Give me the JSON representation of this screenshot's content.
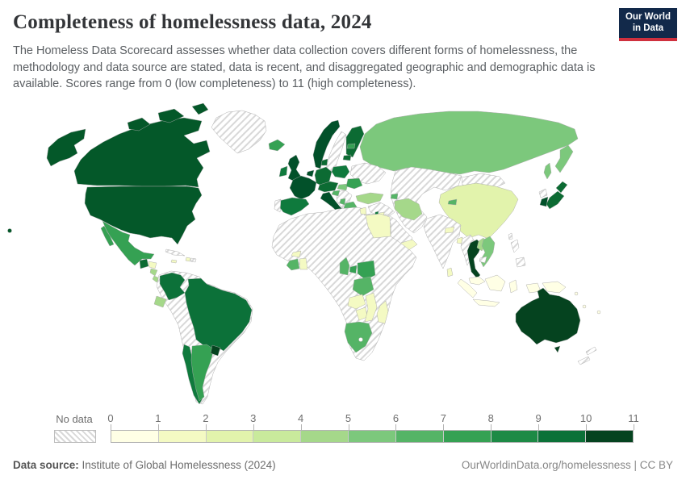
{
  "header": {
    "title": "Completeness of homelessness data, 2024",
    "subtitle": "The Homeless Data Scorecard assesses whether data collection covers different forms of homelessness, the methodology and data source are stated, data is recent, and disaggregated geographic and demographic data is available. Scores range from 0 (low completeness) to 11 (high completeness).",
    "logo": {
      "line1": "Our World",
      "line2": "in Data",
      "bg": "#12294a",
      "accent": "#cf303e"
    }
  },
  "footer": {
    "source_label": "Data source:",
    "source_value": " Institute of Global Homelessness (2024)",
    "right_text": "OurWorldinData.org/homelessness | CC BY"
  },
  "chart_data": {
    "type": "choropleth",
    "title": "Completeness of homelessness data, 2024",
    "value_label": "Homeless Data Scorecard score",
    "range": [
      0,
      11
    ],
    "legend_ticks": [
      "0",
      "1",
      "2",
      "3",
      "4",
      "5",
      "6",
      "7",
      "8",
      "9",
      "10",
      "11"
    ],
    "palette": [
      "#ffffe5",
      "#f4fac3",
      "#e2f3ac",
      "#c9ea9c",
      "#a5d88a",
      "#7cc87c",
      "#55b466",
      "#35a153",
      "#1d8a45",
      "#0b7138",
      "#05431f"
    ],
    "no_data": {
      "label": "No data",
      "pattern": "diagonal-hatch"
    },
    "countries": [
      {
        "id": "canada",
        "name": "Canada",
        "score": 10,
        "fill": "#045829"
      },
      {
        "id": "usa",
        "name": "United States",
        "score": 10,
        "fill": "#045829"
      },
      {
        "id": "greenland",
        "name": "Greenland",
        "score": null,
        "fill": "no-data"
      },
      {
        "id": "mexico",
        "name": "Mexico",
        "score": 7,
        "fill": "#35a153"
      },
      {
        "id": "guatemala",
        "name": "Guatemala",
        "score": 9,
        "fill": "#0c6b33"
      },
      {
        "id": "honduras",
        "name": "Honduras",
        "score": 1,
        "fill": "#f4fac3"
      },
      {
        "id": "nicaragua",
        "name": "Nicaragua",
        "score": 4,
        "fill": "#a5d88a"
      },
      {
        "id": "costarica",
        "name": "Costa Rica",
        "score": 4,
        "fill": "#a5d88a"
      },
      {
        "id": "panama",
        "name": "Panama",
        "score": 7,
        "fill": "#35a153"
      },
      {
        "id": "cuba",
        "name": "Cuba",
        "score": null,
        "fill": "no-data"
      },
      {
        "id": "jamaica",
        "name": "Jamaica",
        "score": 1,
        "fill": "#f4fac3"
      },
      {
        "id": "haiti",
        "name": "Haiti",
        "score": 1,
        "fill": "#f4fac3"
      },
      {
        "id": "dominican",
        "name": "Dominican Republic",
        "score": null,
        "fill": "no-data"
      },
      {
        "id": "samerica-base",
        "name": "South America (no data: Venezuela, Peru, Bolivia, Paraguay, Guyanas)",
        "score": null,
        "fill": "no-data"
      },
      {
        "id": "colombia",
        "name": "Colombia",
        "score": 8,
        "fill": "#0c7139"
      },
      {
        "id": "ecuador",
        "name": "Ecuador",
        "score": 4,
        "fill": "#a5d88a"
      },
      {
        "id": "brazil",
        "name": "Brazil",
        "score": 8,
        "fill": "#0c7139"
      },
      {
        "id": "chile",
        "name": "Chile",
        "score": 8,
        "fill": "#0f7a3d"
      },
      {
        "id": "argentina",
        "name": "Argentina",
        "score": 7,
        "fill": "#35a153"
      },
      {
        "id": "uruguay",
        "name": "Uruguay",
        "score": 11,
        "fill": "#05431f"
      },
      {
        "id": "iceland",
        "name": "Iceland",
        "score": 7,
        "fill": "#35a153"
      },
      {
        "id": "norway",
        "name": "Norway",
        "score": 10,
        "fill": "#02512a"
      },
      {
        "id": "sweden",
        "name": "Sweden",
        "score": null,
        "fill": "no-data"
      },
      {
        "id": "finland",
        "name": "Finland",
        "score": 9,
        "fill": "#0c6b33"
      },
      {
        "id": "estonia",
        "name": "Estonia",
        "score": 7,
        "fill": "#35a153"
      },
      {
        "id": "lithuania",
        "name": "Lithuania",
        "score": 9,
        "fill": "#0c6b33"
      },
      {
        "id": "uk",
        "name": "United Kingdom",
        "score": 10,
        "fill": "#02512a"
      },
      {
        "id": "ireland",
        "name": "Ireland",
        "score": 9,
        "fill": "#0f7a3d"
      },
      {
        "id": "france",
        "name": "France",
        "score": 10,
        "fill": "#02512a"
      },
      {
        "id": "benelux",
        "name": "Belgium / Netherlands",
        "score": 10,
        "fill": "#02512a"
      },
      {
        "id": "germany",
        "name": "Germany",
        "score": 9,
        "fill": "#0c6b33"
      },
      {
        "id": "denmark",
        "name": "Denmark",
        "score": 10,
        "fill": "#0c6b33"
      },
      {
        "id": "poland",
        "name": "Poland",
        "score": 8,
        "fill": "#0f7a3d"
      },
      {
        "id": "czech-austria",
        "name": "Czechia / Austria",
        "score": 9,
        "fill": "#0c6b33"
      },
      {
        "id": "italy",
        "name": "Italy",
        "score": 10,
        "fill": "#02512a"
      },
      {
        "id": "spain",
        "name": "Spain",
        "score": 8,
        "fill": "#0f7a3d"
      },
      {
        "id": "portugal",
        "name": "Portugal",
        "score": null,
        "fill": "no-data"
      },
      {
        "id": "ukraine-belarus",
        "name": "Ukraine / Belarus",
        "score": null,
        "fill": "no-data"
      },
      {
        "id": "balkans",
        "name": "Balkans (no data)",
        "score": null,
        "fill": "no-data"
      },
      {
        "id": "hungary",
        "name": "Hungary",
        "score": 5,
        "fill": "#7cc87c"
      },
      {
        "id": "romania",
        "name": "Romania",
        "score": 7,
        "fill": "#35a153"
      },
      {
        "id": "croatia",
        "name": "Croatia",
        "score": 6,
        "fill": "#55b466"
      },
      {
        "id": "albania",
        "name": "Albania",
        "score": 6,
        "fill": "#55b466"
      },
      {
        "id": "greece",
        "name": "Greece",
        "score": 6,
        "fill": "#55b466"
      },
      {
        "id": "russia",
        "name": "Russia",
        "score": 5,
        "fill": "#7cc87c"
      },
      {
        "id": "kazakh-centralasia",
        "name": "Central Asia (no data)",
        "score": null,
        "fill": "no-data"
      },
      {
        "id": "mongolia",
        "name": "Mongolia",
        "score": null,
        "fill": "no-data"
      },
      {
        "id": "china",
        "name": "China",
        "score": 2,
        "fill": "#e2f3ac"
      },
      {
        "id": "india",
        "name": "India",
        "score": null,
        "fill": "no-data"
      },
      {
        "id": "nepal",
        "name": "Nepal",
        "score": 1,
        "fill": "#f4fac3"
      },
      {
        "id": "bangladesh",
        "name": "Bangladesh",
        "score": 1,
        "fill": "#f4fac3"
      },
      {
        "id": "srilanka",
        "name": "Sri Lanka",
        "score": 1,
        "fill": "#f4fac3"
      },
      {
        "id": "myanmar",
        "name": "Myanmar",
        "score": null,
        "fill": "no-data"
      },
      {
        "id": "thailand",
        "name": "Thailand",
        "score": 11,
        "fill": "#05431f"
      },
      {
        "id": "laos",
        "name": "Laos",
        "score": 4,
        "fill": "#a5d88a"
      },
      {
        "id": "vietnam",
        "name": "Vietnam",
        "score": 5,
        "fill": "#7cc87c"
      },
      {
        "id": "cambodia",
        "name": "Cambodia",
        "score": null,
        "fill": "no-data"
      },
      {
        "id": "malaysia",
        "name": "Malaysia",
        "score": 0,
        "fill": "#ffffe5"
      },
      {
        "id": "indonesia",
        "name": "Indonesia",
        "score": 0,
        "fill": "#ffffe5"
      },
      {
        "id": "png",
        "name": "Papua New Guinea",
        "score": 0,
        "fill": "#ffffe5"
      },
      {
        "id": "philippines",
        "name": "Philippines",
        "score": null,
        "fill": "no-data"
      },
      {
        "id": "japan",
        "name": "Japan",
        "score": 9,
        "fill": "#0c6b33"
      },
      {
        "id": "nkorea",
        "name": "North Korea",
        "score": null,
        "fill": "no-data"
      },
      {
        "id": "skorea",
        "name": "South Korea",
        "score": 10,
        "fill": "#02512a"
      },
      {
        "id": "taiwan",
        "name": "Taiwan",
        "score": null,
        "fill": "no-data"
      },
      {
        "id": "mideast",
        "name": "Middle East (no data)",
        "score": null,
        "fill": "no-data"
      },
      {
        "id": "turkey",
        "name": "Turkey",
        "score": 4,
        "fill": "#a5d88a"
      },
      {
        "id": "azerbaijan",
        "name": "Azerbaijan",
        "score": 6,
        "fill": "#55b466"
      },
      {
        "id": "kyrgyzstan",
        "name": "Kyrgyzstan",
        "score": 6,
        "fill": "#55b466"
      },
      {
        "id": "iran",
        "name": "Iran",
        "score": 4,
        "fill": "#a5d88a"
      },
      {
        "id": "israel",
        "name": "Israel",
        "score": 8,
        "fill": "#0f7a3d"
      },
      {
        "id": "jordan",
        "name": "Jordan",
        "score": 1,
        "fill": "#f4fac3"
      },
      {
        "id": "arabia",
        "name": "Arabian Peninsula (no data)",
        "score": null,
        "fill": "no-data"
      },
      {
        "id": "yemen",
        "name": "Yemen",
        "score": 1,
        "fill": "#f4fac3"
      },
      {
        "id": "africa-base",
        "name": "Africa (no data regions)",
        "score": null,
        "fill": "no-data"
      },
      {
        "id": "egypt",
        "name": "Egypt",
        "score": 1,
        "fill": "#f4fac3"
      },
      {
        "id": "tunisia",
        "name": "Tunisia",
        "score": 1,
        "fill": "#f4fac3"
      },
      {
        "id": "burkina",
        "name": "Burkina Faso",
        "score": 1,
        "fill": "#f4fac3"
      },
      {
        "id": "ivorycoast",
        "name": "Cote d'Ivoire",
        "score": 6,
        "fill": "#55b466"
      },
      {
        "id": "ghana",
        "name": "Ghana",
        "score": 1,
        "fill": "#f4fac3"
      },
      {
        "id": "cameroon",
        "name": "Cameroon",
        "score": 6,
        "fill": "#55b466"
      },
      {
        "id": "uganda",
        "name": "Uganda",
        "score": 7,
        "fill": "#35a153"
      },
      {
        "id": "kenya",
        "name": "Kenya",
        "score": 7,
        "fill": "#35a153"
      },
      {
        "id": "tanzania",
        "name": "Tanzania",
        "score": 6,
        "fill": "#55b466"
      },
      {
        "id": "zambia",
        "name": "Zambia",
        "score": 1,
        "fill": "#f4fac3"
      },
      {
        "id": "zimbabwe",
        "name": "Zimbabwe",
        "score": 1,
        "fill": "#f4fac3"
      },
      {
        "id": "mozambique",
        "name": "Mozambique",
        "score": 1,
        "fill": "#f4fac3"
      },
      {
        "id": "southafrica",
        "name": "South Africa",
        "score": 6,
        "fill": "#55b466"
      },
      {
        "id": "lesotho",
        "name": "Lesotho",
        "score": null,
        "fill": "#ffffff"
      },
      {
        "id": "madagascar",
        "name": "Madagascar",
        "score": 1,
        "fill": "#f4fac3"
      },
      {
        "id": "australia",
        "name": "Australia",
        "score": 11,
        "fill": "#05431f"
      },
      {
        "id": "nz",
        "name": "New Zealand",
        "score": null,
        "fill": "no-data"
      },
      {
        "id": "pacific-islands",
        "name": "Pacific islands",
        "score": 0,
        "fill": "#ffffe5"
      }
    ]
  }
}
